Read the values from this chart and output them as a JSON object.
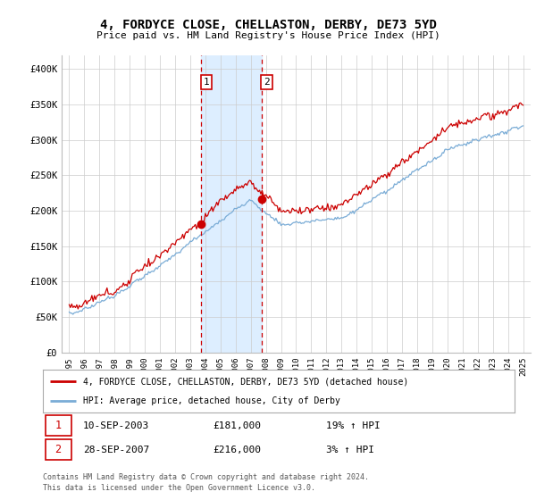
{
  "title": "4, FORDYCE CLOSE, CHELLASTON, DERBY, DE73 5YD",
  "subtitle": "Price paid vs. HM Land Registry's House Price Index (HPI)",
  "sale1_date": "10-SEP-2003",
  "sale1_price": 181000,
  "sale1_label": "19% ↑ HPI",
  "sale2_date": "28-SEP-2007",
  "sale2_price": 216000,
  "sale2_label": "3% ↑ HPI",
  "legend_house": "4, FORDYCE CLOSE, CHELLASTON, DERBY, DE73 5YD (detached house)",
  "legend_hpi": "HPI: Average price, detached house, City of Derby",
  "footer1": "Contains HM Land Registry data © Crown copyright and database right 2024.",
  "footer2": "This data is licensed under the Open Government Licence v3.0.",
  "house_color": "#cc0000",
  "hpi_color": "#7aacd6",
  "shade_color": "#ddeeff",
  "sale_vline_color": "#cc0000",
  "ylim": [
    0,
    420000
  ],
  "yticks": [
    0,
    50000,
    100000,
    150000,
    200000,
    250000,
    300000,
    350000,
    400000
  ],
  "ytick_labels": [
    "£0",
    "£50K",
    "£100K",
    "£150K",
    "£200K",
    "£250K",
    "£300K",
    "£350K",
    "£400K"
  ],
  "start_year": 1995,
  "end_year": 2025
}
